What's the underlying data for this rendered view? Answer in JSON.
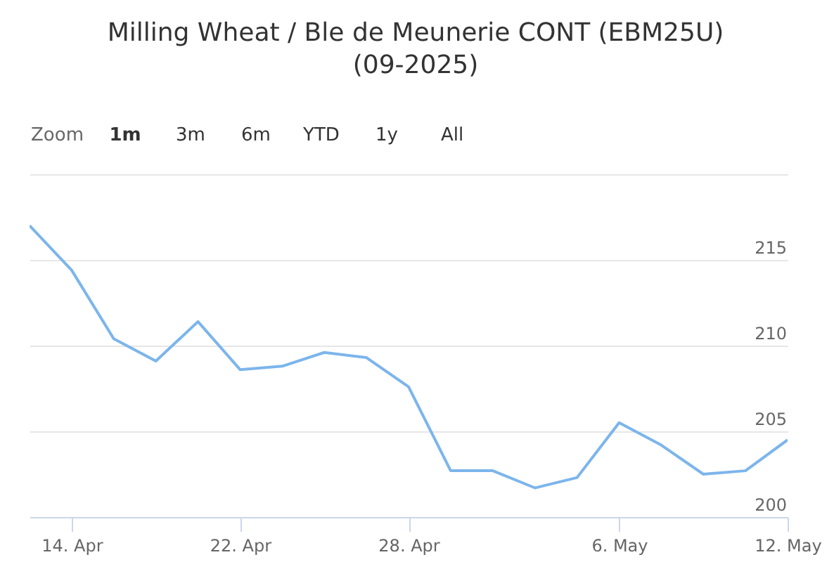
{
  "chart_data": {
    "type": "line",
    "title": "Milling Wheat / Ble de Meunerie CONT (EBM25U) (09-2025)",
    "categories": [
      null,
      "14. Apr",
      null,
      null,
      null,
      "22. Apr",
      null,
      null,
      null,
      "28. Apr",
      null,
      null,
      null,
      null,
      "6. May",
      null,
      null,
      null,
      "12. May"
    ],
    "series": [
      {
        "color": "#7cb5ec",
        "values": [
          217.0,
          214.4,
          210.4,
          209.1,
          211.4,
          208.6,
          208.8,
          209.6,
          209.3,
          207.6,
          202.7,
          202.7,
          201.7,
          202.3,
          205.5,
          204.2,
          202.5,
          202.7,
          204.5
        ]
      }
    ],
    "ylim": [
      200,
      220
    ],
    "yticks": [
      200,
      205,
      210,
      215,
      {
        "value": 220,
        "label": null
      }
    ],
    "grid": "y",
    "marker": "none",
    "line_style": "solid",
    "annotations": [
      "Zoom",
      "1m",
      "3m",
      "6m",
      "YTD",
      "1y",
      "All"
    ]
  }
}
